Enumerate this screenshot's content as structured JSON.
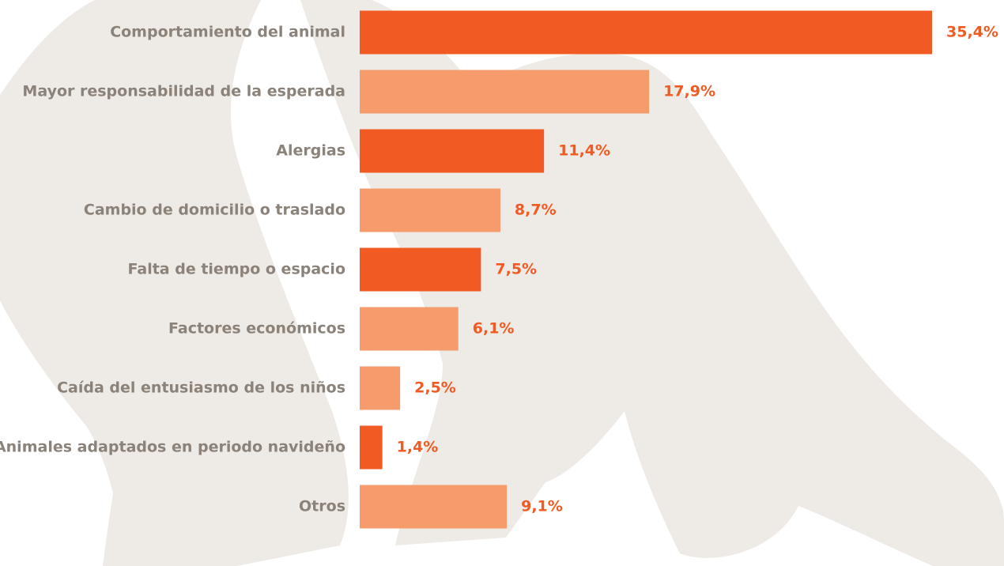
{
  "chart_data": {
    "type": "bar",
    "orientation": "horizontal",
    "categories": [
      "Comportamiento del animal",
      "Mayor responsabilidad de la esperada",
      "Alergias",
      "Cambio de domicilio o traslado",
      "Falta de tiempo o espacio",
      "Factores económicos",
      "Caída del entusiasmo de los niños",
      "Animales adaptados en periodo navideño",
      "Otros"
    ],
    "values": [
      35.4,
      17.9,
      11.4,
      8.7,
      7.5,
      6.1,
      2.5,
      1.4,
      9.1
    ],
    "value_labels": [
      "35,4%",
      "17,9%",
      "11,4%",
      "8,7%",
      "7,5%",
      "6,1%",
      "2,5%",
      "1,4%",
      "9,1%"
    ],
    "colors": [
      "#f15a22",
      "#f59b6c",
      "#f15a22",
      "#f59b6c",
      "#f15a22",
      "#f59b6c",
      "#f59b6c",
      "#f15a22",
      "#f59b6c"
    ],
    "label_color": "#8b8279",
    "value_label_color": "#f15a22"
  }
}
